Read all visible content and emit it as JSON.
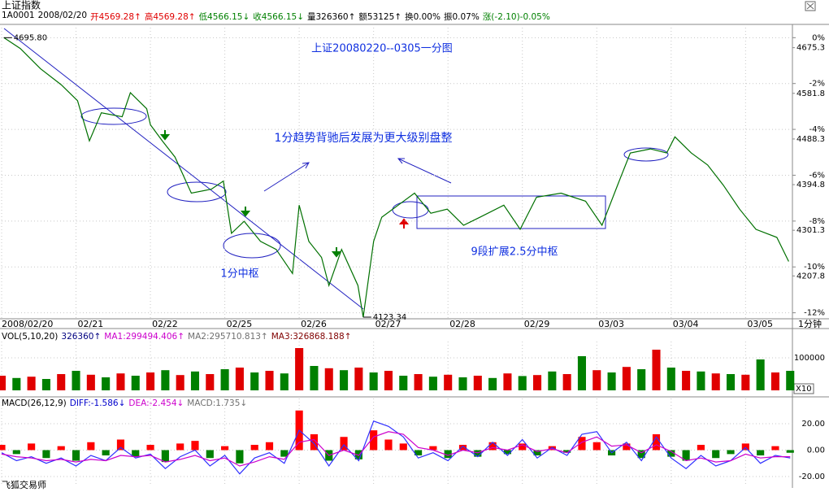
{
  "header": {
    "title": "上证指数",
    "quote": [
      {
        "text": "1A0001",
        "color": "#000000"
      },
      {
        "text": "2008/02/20",
        "color": "#000000"
      },
      {
        "text": "开4569.28↑",
        "color": "#e00000"
      },
      {
        "text": "高4569.28↑",
        "color": "#e00000"
      },
      {
        "text": "低4566.15↓",
        "color": "#008000"
      },
      {
        "text": "收4566.15↓",
        "color": "#008000"
      },
      {
        "text": "量326360↑",
        "color": "#000000"
      },
      {
        "text": "额53125↑",
        "color": "#000000"
      },
      {
        "text": "换0.00%",
        "color": "#000000"
      },
      {
        "text": "振0.07%",
        "color": "#000000"
      },
      {
        "text": "涨(-2.10)-0.05%",
        "color": "#008000"
      }
    ]
  },
  "chart_data": [
    {
      "type": "line",
      "title": "上证20080220--0305一分图",
      "annotations": [
        "1分趋势背驰后发展为更大级别盘整",
        "9段扩展2.5分中枢",
        "1分中枢"
      ],
      "x": [
        0.03,
        0.25,
        0.52,
        0.8,
        1.02,
        1.18,
        1.34,
        1.62,
        1.73,
        1.95,
        2.0,
        2.16,
        2.33,
        2.55,
        2.82,
        2.98,
        3.09,
        3.26,
        3.48,
        3.69,
        3.91,
        4.0,
        4.13,
        4.3,
        4.4,
        4.57,
        4.79,
        4.86,
        5.0,
        5.11,
        5.33,
        5.55,
        5.77,
        5.99,
        6.21,
        6.43,
        6.75,
        6.97,
        7.19,
        7.52,
        7.85,
        8.07,
        8.28,
        8.45,
        8.72,
        8.94,
        9.05,
        9.27,
        9.49,
        9.7,
        9.92,
        10.14,
        10.42,
        10.58
      ],
      "values": [
        4695.8,
        4673.7,
        4632.5,
        4599.6,
        4566.7,
        4484.4,
        4542.0,
        4533.7,
        4583.1,
        4550.2,
        4517.3,
        4484.4,
        4451.4,
        4377.4,
        4385.6,
        4402.1,
        4295.1,
        4319.8,
        4278.6,
        4262.1,
        4212.8,
        4352.7,
        4278.6,
        4245.7,
        4188.1,
        4262.1,
        4188.1,
        4123.34,
        4278.6,
        4328.0,
        4352.7,
        4377.4,
        4336.2,
        4344.5,
        4311.5,
        4328.0,
        4352.7,
        4303.3,
        4369.1,
        4377.4,
        4360.9,
        4311.5,
        4393.8,
        4459.7,
        4467.9,
        4459.7,
        4492.6,
        4459.7,
        4435.0,
        4393.8,
        4344.5,
        4303.3,
        4286.8,
        4237.5
      ],
      "color": "#007000",
      "high": {
        "value": 4695.8,
        "label": "4695.80"
      },
      "low": {
        "value": 4123.34,
        "label": "4123.34"
      },
      "xlim": [
        0,
        10.63
      ],
      "xticks": [
        {
          "value": 0,
          "label": "2008/02/20"
        },
        {
          "value": 1,
          "label": "02/21"
        },
        {
          "value": 2,
          "label": "02/22"
        },
        {
          "value": 3,
          "label": "02/25"
        },
        {
          "value": 4,
          "label": "02/26"
        },
        {
          "value": 5,
          "label": "02/27"
        },
        {
          "value": 6,
          "label": "02/28"
        },
        {
          "value": 7,
          "label": "02/29"
        },
        {
          "value": 8,
          "label": "03/03"
        },
        {
          "value": 9,
          "label": "03/04"
        },
        {
          "value": 10,
          "label": "03/05"
        }
      ],
      "x_unit": "1分钟",
      "ylim": [
        4120,
        4723
      ],
      "yticks": [
        4675.3,
        4581.8,
        4488.3,
        4394.8,
        4301.3,
        4207.8
      ],
      "y2lim": [
        -12.262,
        0.579
      ],
      "y2ticks": [
        {
          "value": 0,
          "label": "0%"
        },
        {
          "value": -2,
          "label": "-2%"
        },
        {
          "value": -4,
          "label": "-4%"
        },
        {
          "value": -6,
          "label": "-6%"
        },
        {
          "value": -8,
          "label": "-8%"
        },
        {
          "value": -10,
          "label": "-10%"
        },
        {
          "value": -12,
          "label": "-12%"
        }
      ],
      "grid": true
    },
    {
      "type": "bar",
      "legend": [
        {
          "text": "VOL(5,10,20)",
          "color": "#000000"
        },
        {
          "text": "326360↑",
          "color": "#000080"
        },
        {
          "text": "MA1:299494.406↑",
          "color": "#cc00cc"
        },
        {
          "text": "MA2:295710.813↑",
          "color": "#707070"
        },
        {
          "text": "MA3:326868.188↑",
          "color": "#800000"
        }
      ],
      "x": [
        0,
        0.2,
        0.4,
        0.6,
        0.8,
        1,
        1.2,
        1.4,
        1.6,
        1.8,
        2,
        2.2,
        2.4,
        2.6,
        2.8,
        3,
        3.2,
        3.4,
        3.6,
        3.8,
        4,
        4.2,
        4.4,
        4.6,
        4.8,
        5,
        5.2,
        5.4,
        5.6,
        5.8,
        6,
        6.2,
        6.4,
        6.6,
        6.8,
        7,
        7.2,
        7.4,
        7.6,
        7.8,
        8,
        8.2,
        8.4,
        8.6,
        8.8,
        9,
        9.2,
        9.4,
        9.6,
        9.8,
        10,
        10.2,
        10.4,
        10.6
      ],
      "values": [
        45000,
        38000,
        42000,
        35000,
        50000,
        60000,
        48000,
        40000,
        52000,
        45000,
        55000,
        62000,
        47000,
        58000,
        50000,
        65000,
        70000,
        55000,
        60000,
        52000,
        130000,
        75000,
        68000,
        62000,
        70000,
        55000,
        60000,
        45000,
        50000,
        42000,
        48000,
        40000,
        45000,
        38000,
        52000,
        44000,
        47000,
        58000,
        50000,
        105000,
        62000,
        55000,
        72000,
        65000,
        125000,
        70000,
        60000,
        58000,
        52000,
        50000,
        48000,
        95000,
        55000,
        60000
      ],
      "colors": [
        "#e00000",
        "#008000",
        "#e00000",
        "#008000",
        "#e00000",
        "#008000",
        "#e00000",
        "#008000",
        "#e00000",
        "#008000",
        "#e00000",
        "#008000",
        "#e00000",
        "#008000",
        "#e00000",
        "#008000",
        "#e00000",
        "#008000",
        "#e00000",
        "#008000",
        "#e00000",
        "#008000",
        "#e00000",
        "#008000",
        "#e00000",
        "#008000",
        "#e00000",
        "#008000",
        "#e00000",
        "#008000",
        "#e00000",
        "#008000",
        "#e00000",
        "#008000",
        "#e00000",
        "#008000",
        "#e00000",
        "#008000",
        "#e00000",
        "#008000",
        "#e00000",
        "#008000",
        "#e00000",
        "#008000",
        "#e00000",
        "#008000",
        "#e00000",
        "#008000",
        "#e00000",
        "#008000",
        "#e00000",
        "#008000",
        "#e00000",
        "#008000"
      ],
      "scale_label": "X10",
      "ylim": [
        0,
        150000
      ],
      "yticks": [
        100000
      ]
    },
    {
      "type": "macd",
      "legend": [
        {
          "text": "MACD(26,12,9)",
          "color": "#000000"
        },
        {
          "text": "DIFF:-1.586↓",
          "color": "#0000cc"
        },
        {
          "text": "DEA:-2.454↓",
          "color": "#cc00cc"
        },
        {
          "text": "MACD:1.735↓",
          "color": "#707070"
        }
      ],
      "x": [
        0,
        0.2,
        0.4,
        0.6,
        0.8,
        1,
        1.2,
        1.4,
        1.6,
        1.8,
        2,
        2.2,
        2.4,
        2.6,
        2.8,
        3,
        3.2,
        3.4,
        3.6,
        3.8,
        4,
        4.2,
        4.4,
        4.6,
        4.8,
        5,
        5.2,
        5.4,
        5.6,
        5.8,
        6,
        6.2,
        6.4,
        6.6,
        6.8,
        7,
        7.2,
        7.4,
        7.6,
        7.8,
        8,
        8.2,
        8.4,
        8.6,
        8.8,
        9,
        9.2,
        9.4,
        9.6,
        9.8,
        10,
        10.2,
        10.4,
        10.6
      ],
      "values": [
        4,
        -3,
        5,
        -6,
        3,
        -8,
        6,
        -4,
        8,
        -5,
        4,
        -9,
        5,
        7,
        -6,
        3,
        -10,
        4,
        6,
        -5,
        30,
        12,
        -8,
        10,
        -7,
        15,
        8,
        5,
        -4,
        3,
        -6,
        4,
        -5,
        6,
        -3,
        5,
        -4,
        3,
        -2,
        10,
        6,
        -4,
        5,
        -6,
        12,
        -5,
        -8,
        4,
        -6,
        -3,
        5,
        -4,
        3,
        -2
      ],
      "up_color": "#ff0000",
      "down_color": "#008000",
      "series": [
        {
          "color": "#3030ff",
          "values": [
            -2,
            -8,
            -5,
            -10,
            -6,
            -12,
            -4,
            -8,
            2,
            -6,
            -3,
            -14,
            -5,
            0,
            -12,
            -4,
            -18,
            -6,
            -2,
            -10,
            15,
            5,
            -12,
            4,
            -8,
            22,
            18,
            10,
            -6,
            -2,
            -8,
            3,
            -5,
            6,
            -4,
            8,
            -6,
            2,
            -4,
            12,
            14,
            -2,
            6,
            -8,
            10,
            -6,
            -14,
            -4,
            -12,
            -8,
            2,
            -10,
            -4,
            -6
          ]
        },
        {
          "color": "#cc00cc",
          "values": [
            -3,
            -5,
            -6,
            -8,
            -7,
            -9,
            -7,
            -8,
            -4,
            -5,
            -4,
            -9,
            -7,
            -4,
            -8,
            -6,
            -12,
            -9,
            -5,
            -7,
            6,
            8,
            -4,
            0,
            -4,
            10,
            14,
            12,
            2,
            0,
            -4,
            0,
            -2,
            2,
            0,
            4,
            -1,
            1,
            -2,
            6,
            10,
            3,
            4,
            -2,
            4,
            -1,
            -8,
            -6,
            -9,
            -8,
            -3,
            -6,
            -5,
            -5
          ]
        }
      ],
      "ylim": [
        -27.4,
        39.1
      ],
      "yticks": [
        {
          "value": 20,
          "label": "20.00"
        },
        {
          "value": 0,
          "label": "0.00"
        },
        {
          "value": -20,
          "label": "-20.00"
        }
      ]
    }
  ],
  "footer": "飞狐交易师"
}
